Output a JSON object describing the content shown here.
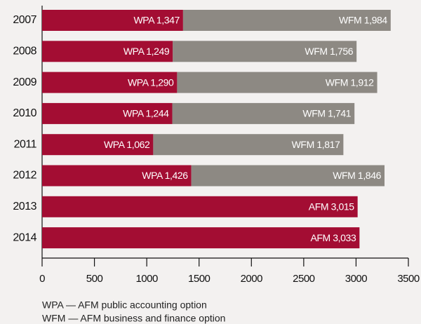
{
  "chart_data": {
    "type": "bar",
    "orientation": "horizontal",
    "stacked": true,
    "categories": [
      "2007",
      "2008",
      "2009",
      "2010",
      "2011",
      "2012",
      "2013",
      "2014"
    ],
    "series": [
      {
        "name": "WPA",
        "color": "#a30d33",
        "values": [
          1347,
          1249,
          1290,
          1244,
          1062,
          1426,
          null,
          null
        ],
        "value_labels": [
          "WPA 1,347",
          "WPA 1,249",
          "WPA 1,290",
          "WPA 1,244",
          "WPA 1,062",
          "WPA 1,426",
          null,
          null
        ]
      },
      {
        "name": "WFM",
        "color": "#8d8983",
        "values": [
          1984,
          1756,
          1912,
          1741,
          1817,
          1846,
          null,
          null
        ],
        "value_labels": [
          "WFM 1,984",
          "WFM 1,756",
          "WFM 1,912",
          "WFM 1,741",
          "WFM 1,817",
          "WFM 1,846",
          null,
          null
        ]
      },
      {
        "name": "AFM",
        "color": "#a30d33",
        "values": [
          null,
          null,
          null,
          null,
          null,
          null,
          3015,
          3033
        ],
        "value_labels": [
          null,
          null,
          null,
          null,
          null,
          null,
          "AFM 3,015",
          "AFM 3,033"
        ]
      }
    ],
    "xlim": [
      0,
      3500
    ],
    "xticks": [
      0,
      500,
      1000,
      1500,
      2000,
      2500,
      3000,
      3500
    ],
    "notes": [
      "WPA — AFM public accounting option",
      "WFM — AFM business and finance option"
    ]
  }
}
